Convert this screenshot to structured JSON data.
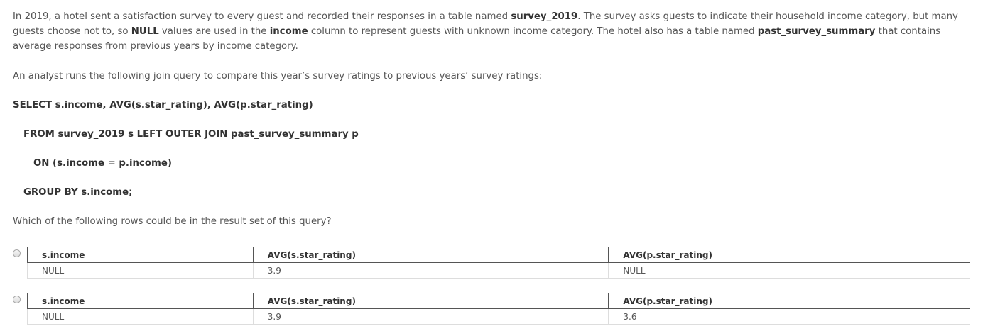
{
  "paragraph1": {
    "t1": "In 2019, a hotel sent a satisfaction survey to every guest and recorded their responses in a table named ",
    "b1": "survey_2019",
    "t2": ". The survey asks guests to indicate their household income category, but many guests choose not to, so ",
    "b2": "NULL",
    "t3": " values are used in the ",
    "b3": "income",
    "t4": " column to represent guests with unknown income category. The hotel also has a table named ",
    "b4": "past_survey_summary",
    "t5": " that contains average responses from previous years by income category."
  },
  "paragraph2": "An analyst runs the following join query to compare this year’s survey ratings to previous years’ survey ratings:",
  "query": {
    "line1": "SELECT s.income, AVG(s.star_rating), AVG(p.star_rating)",
    "line2": "FROM survey_2019 s LEFT OUTER JOIN past_survey_summary p",
    "line3": "ON (s.income = p.income)",
    "line4": "GROUP BY s.income;"
  },
  "question": "Which of the following rows could be in the result set of this query?",
  "options": [
    {
      "headers": [
        "s.income",
        "AVG(s.star_rating)",
        "AVG(p.star_rating)"
      ],
      "row": [
        "NULL",
        "3.9",
        "NULL"
      ]
    },
    {
      "headers": [
        "s.income",
        "AVG(s.star_rating)",
        "AVG(p.star_rating)"
      ],
      "row": [
        "NULL",
        "3.9",
        "3.6"
      ]
    }
  ]
}
